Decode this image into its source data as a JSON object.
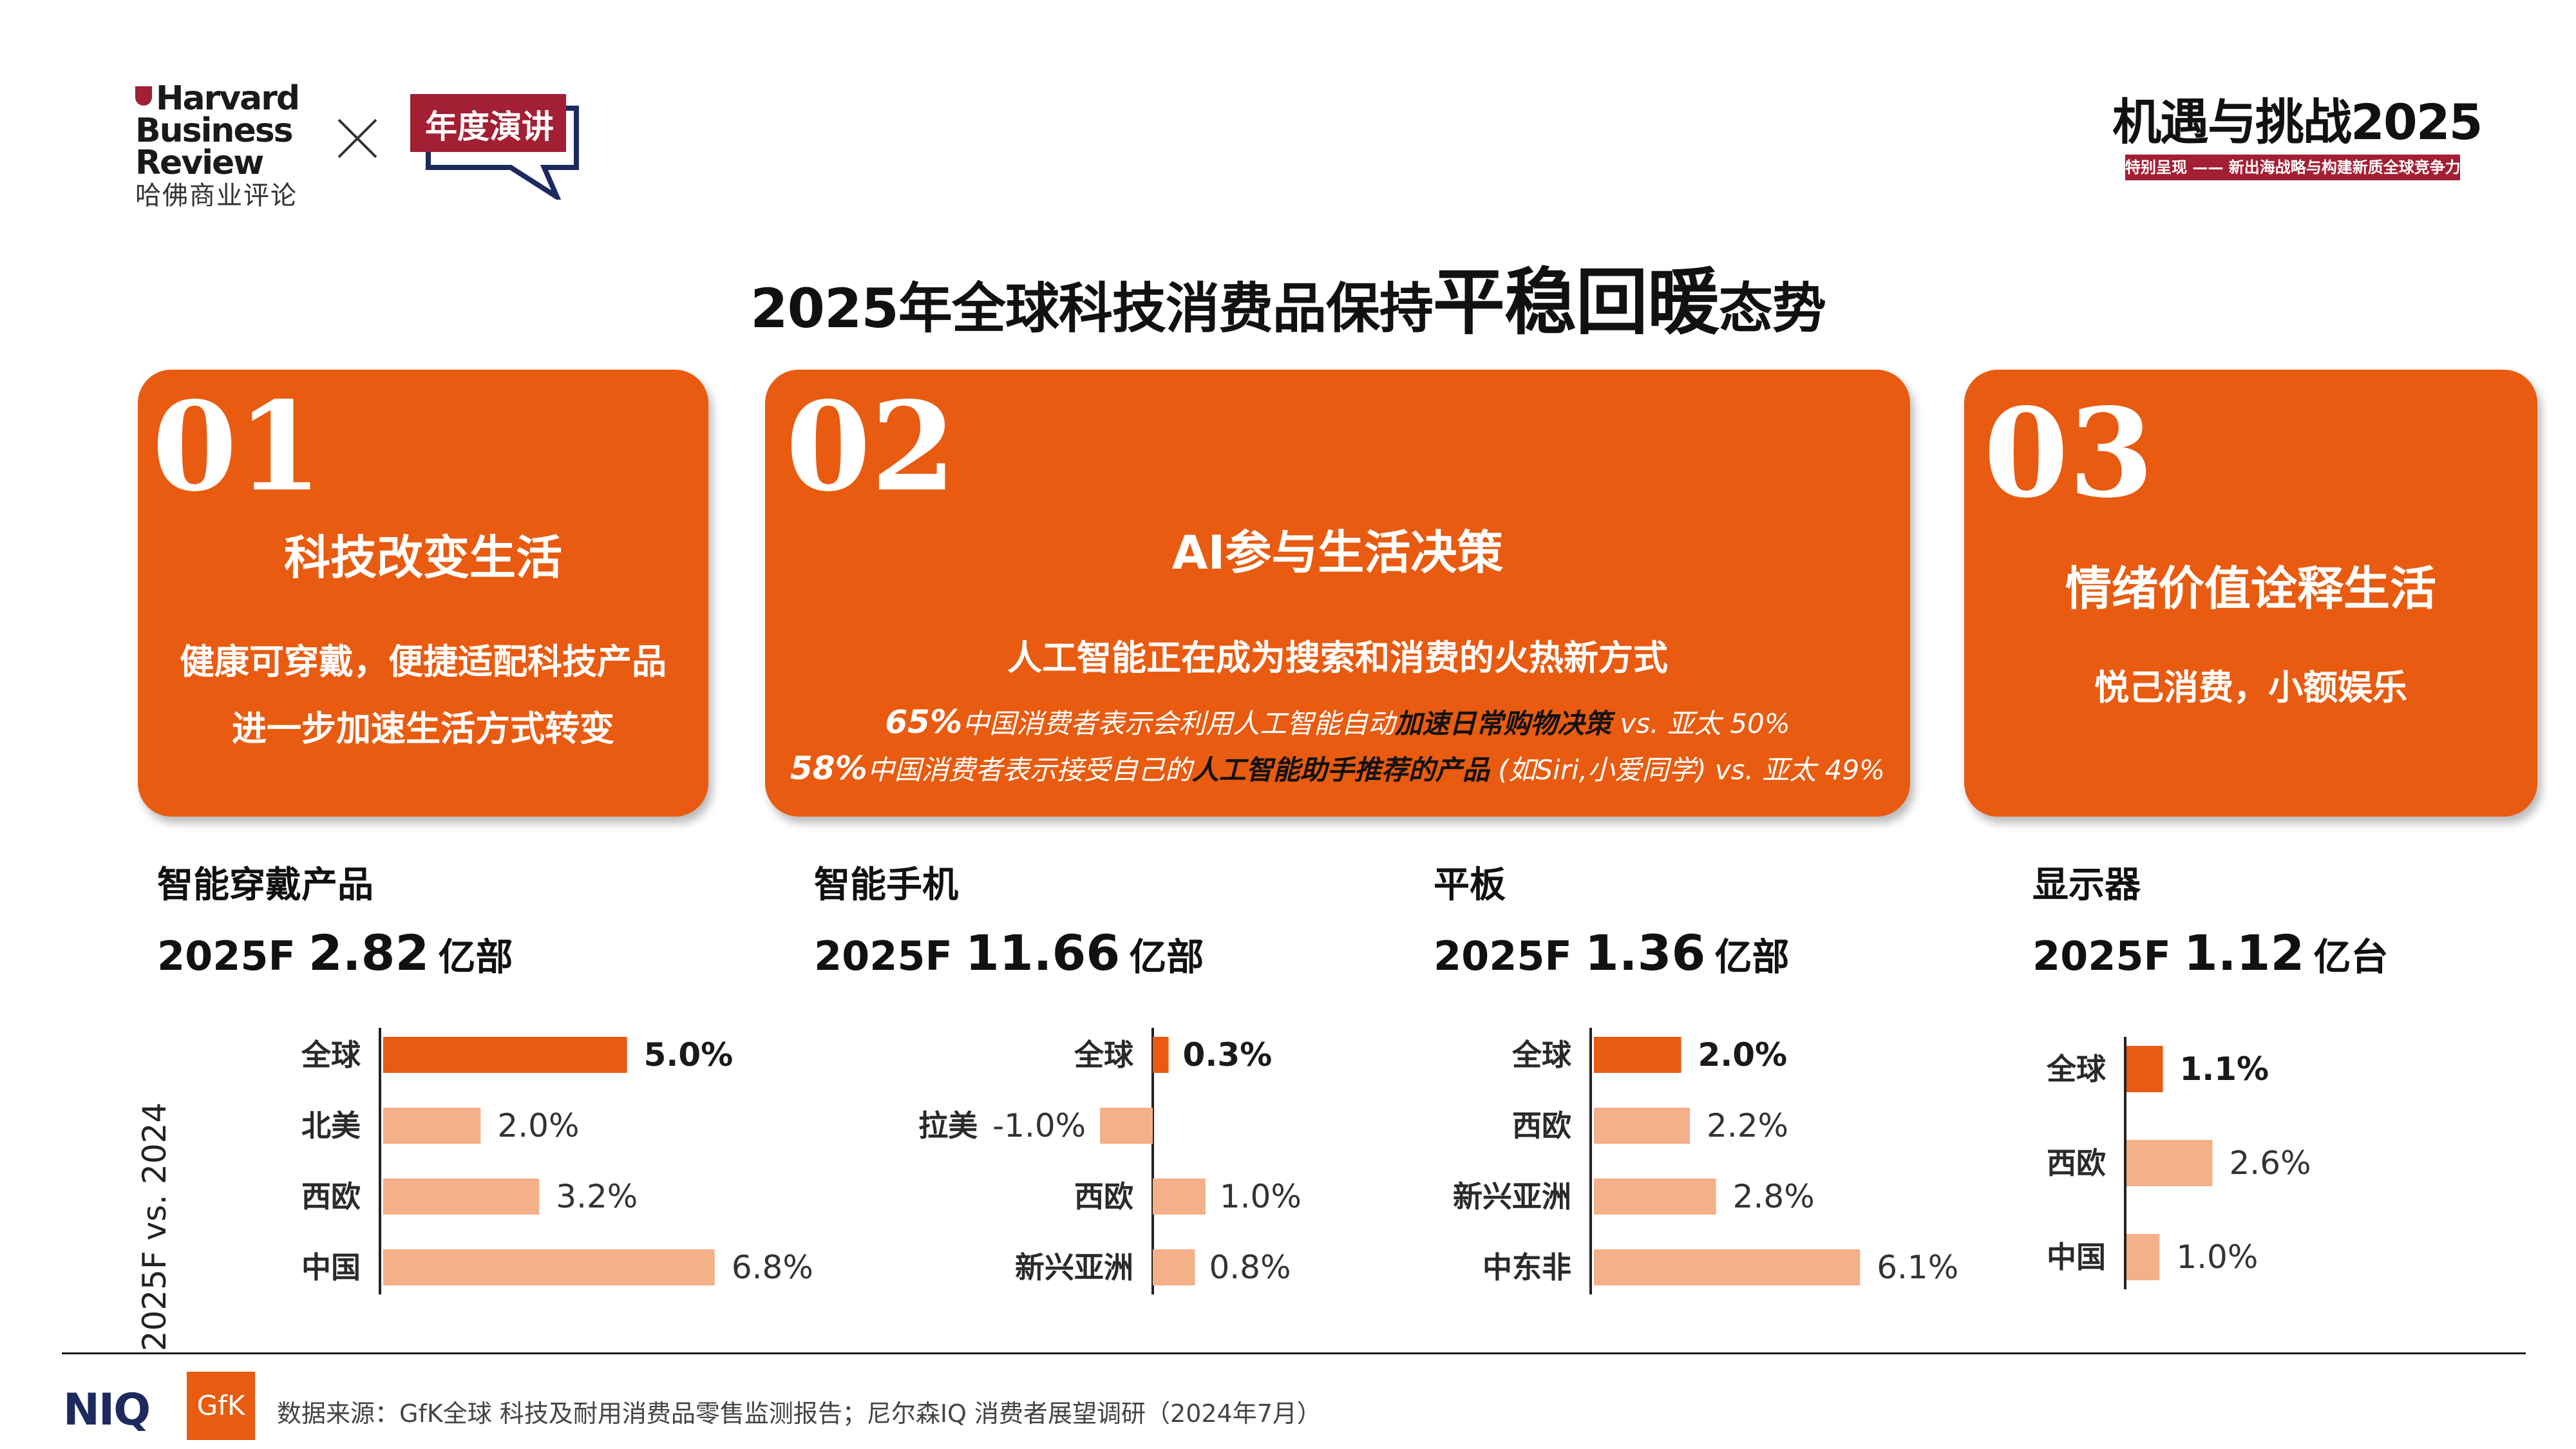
{
  "header": {
    "hbr_lines": [
      "Harvard",
      "Business",
      "Review"
    ],
    "hbr_cn": "哈佛商业评论",
    "speech_badge": "年度演讲",
    "brand_title": "机遇与挑战2025",
    "brand_subtitle": "特别呈现 —— 新出海战略与构建新质全球竞争力"
  },
  "main_title": {
    "part1": "2025年全球科技消费品保持",
    "part2": "平稳回暖",
    "part3": "态势"
  },
  "cards": {
    "c1": {
      "num": "01",
      "title": "科技改变生活",
      "lines": [
        "健康可穿戴，便捷适配科技产品",
        "进一步加速生活方式转变"
      ]
    },
    "c2": {
      "num": "02",
      "title": "AI参与生活决策",
      "subtitle": "人工智能正在成为搜索和消费的火热新方式",
      "stats": [
        {
          "pct": "65%",
          "text": "中国消费者表示会利用人工智能自动",
          "highlight": "加速日常购物决策",
          "after": " vs. 亚太 50%"
        },
        {
          "pct": "58%",
          "text": "中国消费者表示接受自己的",
          "highlight": "人工智能助手推荐的产品",
          "after": " (如Siri,小爱同学) vs. 亚太 49%"
        }
      ]
    },
    "c3": {
      "num": "03",
      "title": "情绪价值诠释生活",
      "line": "悦己消费，小额娱乐"
    }
  },
  "y_axis_caption": "2025F vs. 2024",
  "colors": {
    "orange": "#e85b10",
    "light_orange": "#f4b088",
    "brand_red": "#a31f34",
    "axis": "#222222"
  },
  "chart_data": [
    {
      "type": "bar",
      "orientation": "horizontal",
      "title": "智能穿戴产品",
      "year_label": "2025F",
      "value_label": "2.82",
      "unit": "亿部",
      "categories": [
        "全球",
        "北美",
        "西欧",
        "中国"
      ],
      "values": [
        5.0,
        2.0,
        3.2,
        6.8
      ],
      "labels": [
        "5.0%",
        "2.0%",
        "3.2%",
        "6.8%"
      ],
      "highlight_index": 0,
      "xlim": [
        0,
        7.0
      ]
    },
    {
      "type": "bar",
      "orientation": "horizontal",
      "title": "智能手机",
      "year_label": "2025F",
      "value_label": "11.66",
      "unit": "亿部",
      "categories": [
        "全球",
        "拉美",
        "西欧",
        "新兴亚洲"
      ],
      "values": [
        0.3,
        -1.0,
        1.0,
        0.8
      ],
      "labels": [
        "0.3%",
        "-1.0%",
        "1.0%",
        "0.8%"
      ],
      "highlight_index": 0,
      "xlim": [
        -1.1,
        1.1
      ]
    },
    {
      "type": "bar",
      "orientation": "horizontal",
      "title": "平板",
      "year_label": "2025F",
      "value_label": "1.36",
      "unit": "亿部",
      "categories": [
        "全球",
        "西欧",
        "新兴亚洲",
        "中东非"
      ],
      "values": [
        2.0,
        2.2,
        2.8,
        6.1
      ],
      "labels": [
        "2.0%",
        "2.2%",
        "2.8%",
        "6.1%"
      ],
      "highlight_index": 0,
      "xlim": [
        0,
        6.2
      ]
    },
    {
      "type": "bar",
      "orientation": "horizontal",
      "title": "显示器",
      "year_label": "2025F",
      "value_label": "1.12",
      "unit": "亿台",
      "categories": [
        "全球",
        "西欧",
        "中国"
      ],
      "values": [
        1.1,
        2.6,
        1.0
      ],
      "labels": [
        "1.1%",
        "2.6%",
        "1.0%"
      ],
      "highlight_index": 0,
      "xlim": [
        0,
        3.7
      ]
    }
  ],
  "footer": {
    "niq": "NIQ",
    "gfk": "GfK",
    "source": "数据来源：GfK全球 科技及耐用消费品零售监测报告；尼尔森IQ 消费者展望调研（2024年7月）"
  }
}
